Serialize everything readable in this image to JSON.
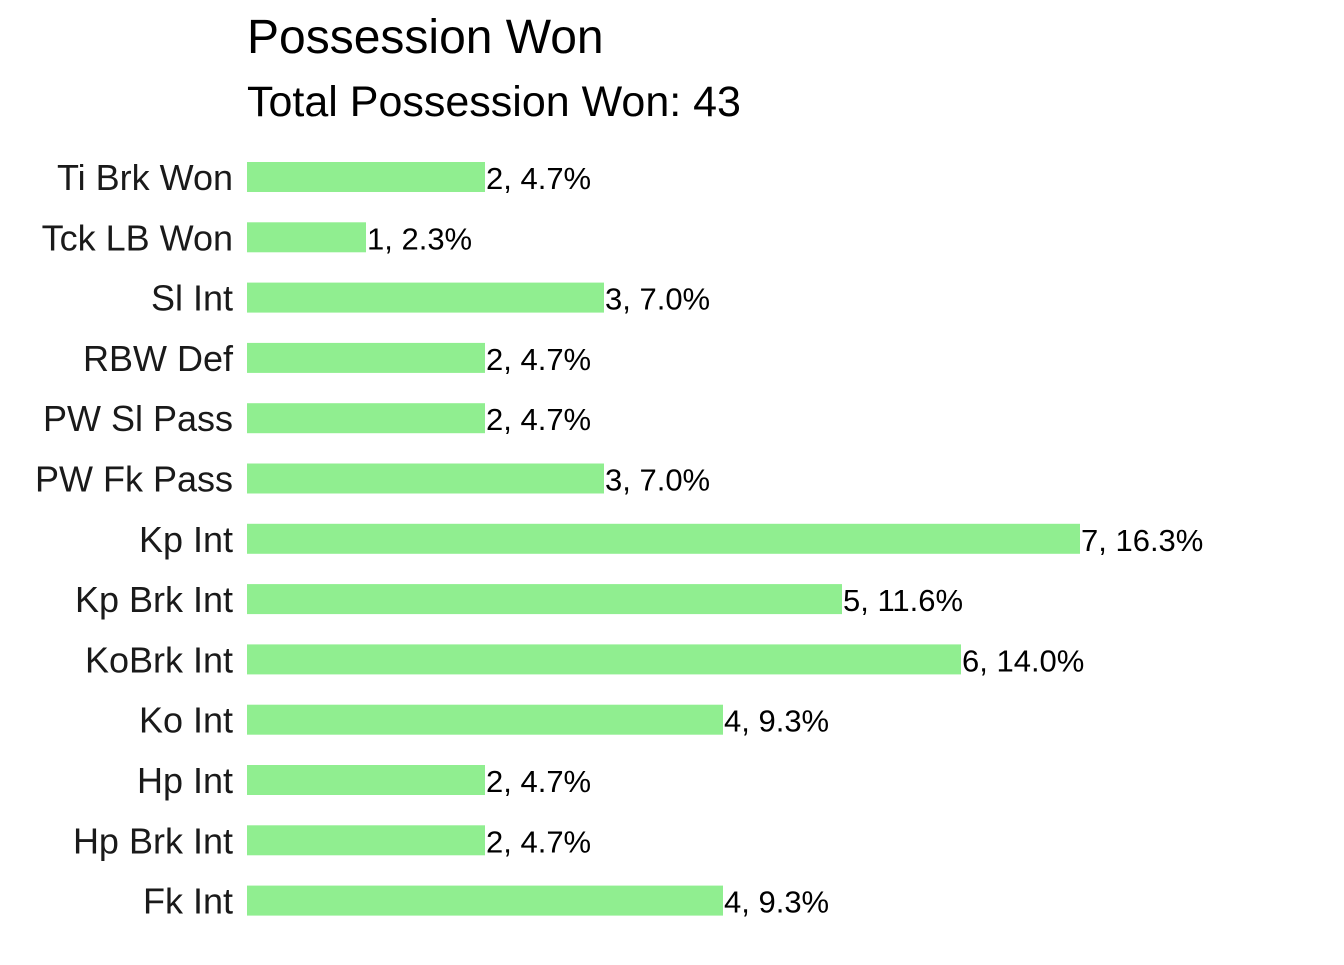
{
  "chart_data": {
    "type": "bar",
    "orientation": "horizontal",
    "title": "Possession Won",
    "subtitle": "Total Possession Won: 43",
    "categories": [
      "Ti Brk Won",
      "Tck LB Won",
      "Sl Int",
      "RBW Def",
      "PW Sl Pass",
      "PW Fk Pass",
      "Kp Int",
      "Kp Brk Int",
      "KoBrk Int",
      "Ko Int",
      "Hp Int",
      "Hp Brk Int",
      "Fk Int"
    ],
    "values": [
      2,
      1,
      3,
      2,
      2,
      3,
      7,
      5,
      6,
      4,
      2,
      2,
      4
    ],
    "data_labels": [
      "2, 4.7%",
      "1, 2.3%",
      "3, 7.0%",
      "2, 4.7%",
      "2, 4.7%",
      "3, 7.0%",
      "7, 16.3%",
      "5, 11.6%",
      "6, 14.0%",
      "4, 9.3%",
      "2, 4.7%",
      "2, 4.7%",
      "4, 9.3%"
    ],
    "xlim": [
      0,
      7
    ],
    "grid": false,
    "legend": false,
    "bar_color": "#90ee90"
  }
}
